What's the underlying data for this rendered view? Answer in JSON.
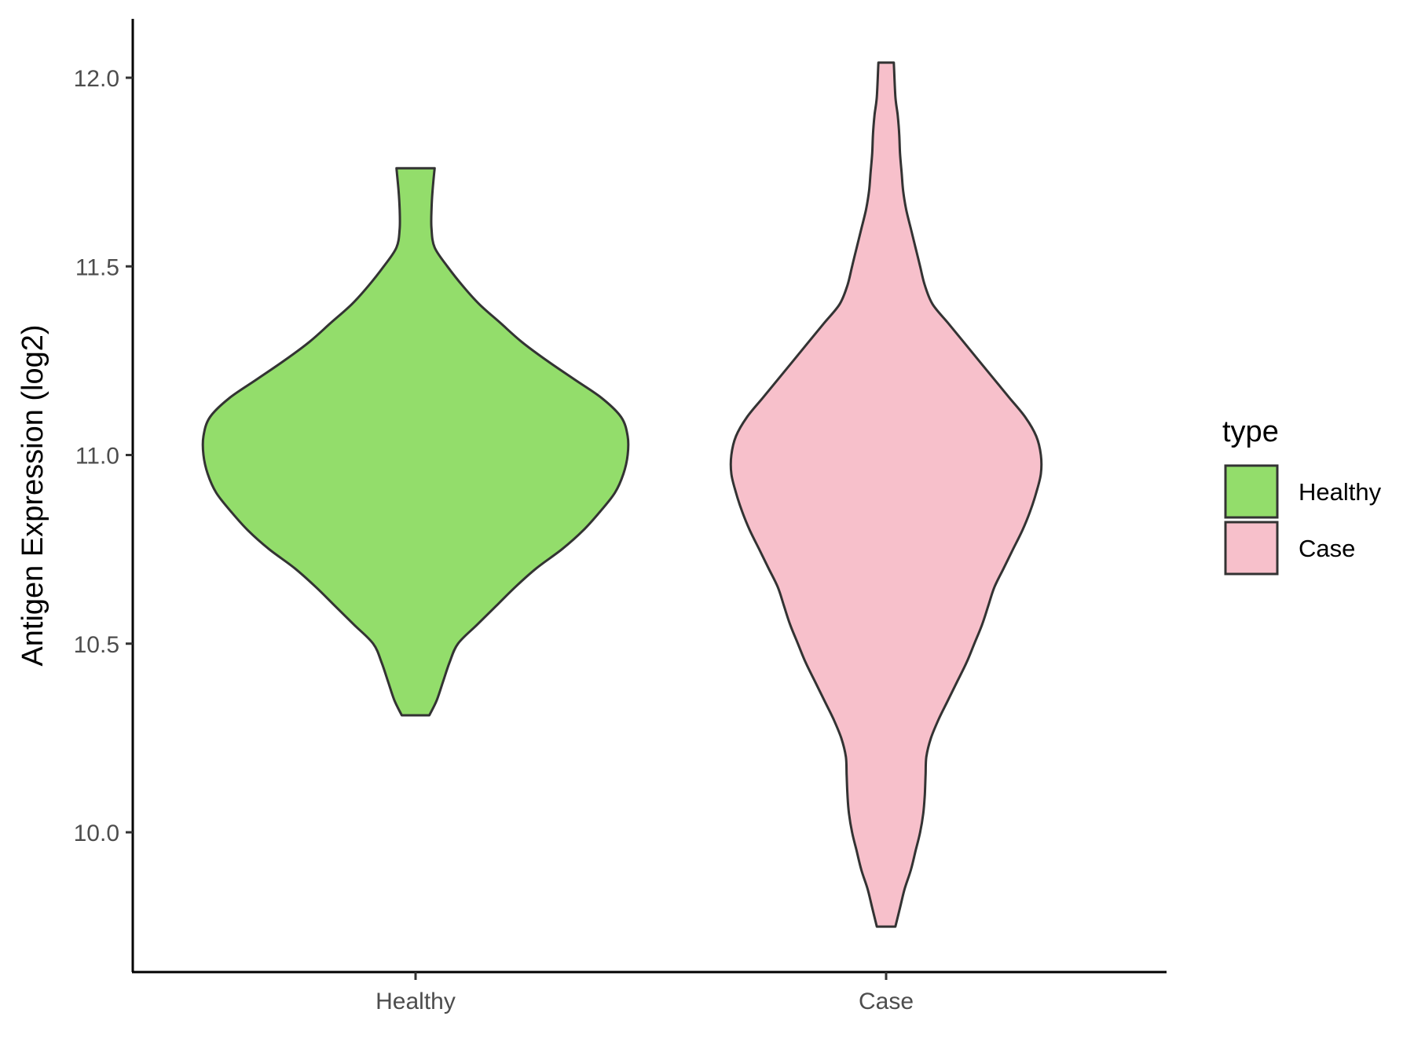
{
  "chart_data": {
    "type": "violin",
    "ylabel": "Antigen Expression (log2)",
    "xlabel": "",
    "categories": [
      "Healthy",
      "Case"
    ],
    "ylim": [
      9.68,
      12.16
    ],
    "yticks": [
      10.0,
      10.5,
      11.0,
      11.5,
      12.0
    ],
    "ytick_labels": [
      "10.0",
      "10.5",
      "11.0",
      "11.5",
      "12.0"
    ],
    "grid": false,
    "legend": {
      "title": "type",
      "placement": "right",
      "entries": [
        {
          "label": "Healthy",
          "color": "#93dd6b"
        },
        {
          "label": "Case",
          "color": "#f7c0cb"
        }
      ]
    },
    "series": [
      {
        "name": "Healthy",
        "color": "#93dd6b",
        "min": 10.31,
        "max": 11.76,
        "profile": [
          [
            10.31,
            0.065
          ],
          [
            10.35,
            0.1
          ],
          [
            10.4,
            0.13
          ],
          [
            10.45,
            0.16
          ],
          [
            10.5,
            0.2
          ],
          [
            10.55,
            0.29
          ],
          [
            10.6,
            0.38
          ],
          [
            10.65,
            0.47
          ],
          [
            10.7,
            0.57
          ],
          [
            10.75,
            0.69
          ],
          [
            10.8,
            0.79
          ],
          [
            10.85,
            0.87
          ],
          [
            10.9,
            0.94
          ],
          [
            10.95,
            0.98
          ],
          [
            11.0,
            1.0
          ],
          [
            11.05,
            1.0
          ],
          [
            11.1,
            0.97
          ],
          [
            11.15,
            0.88
          ],
          [
            11.2,
            0.75
          ],
          [
            11.25,
            0.62
          ],
          [
            11.3,
            0.5
          ],
          [
            11.35,
            0.4
          ],
          [
            11.4,
            0.3
          ],
          [
            11.45,
            0.22
          ],
          [
            11.5,
            0.15
          ],
          [
            11.55,
            0.09
          ],
          [
            11.6,
            0.075
          ],
          [
            11.65,
            0.075
          ],
          [
            11.7,
            0.08
          ],
          [
            11.76,
            0.09
          ]
        ]
      },
      {
        "name": "Case",
        "color": "#f7c0cb",
        "min": 9.75,
        "max": 12.04,
        "profile": [
          [
            9.75,
            0.06
          ],
          [
            9.8,
            0.09
          ],
          [
            9.85,
            0.12
          ],
          [
            9.9,
            0.16
          ],
          [
            9.95,
            0.19
          ],
          [
            10.0,
            0.22
          ],
          [
            10.05,
            0.24
          ],
          [
            10.1,
            0.25
          ],
          [
            10.15,
            0.255
          ],
          [
            10.2,
            0.26
          ],
          [
            10.25,
            0.29
          ],
          [
            10.3,
            0.34
          ],
          [
            10.35,
            0.4
          ],
          [
            10.4,
            0.46
          ],
          [
            10.45,
            0.52
          ],
          [
            10.5,
            0.57
          ],
          [
            10.55,
            0.62
          ],
          [
            10.6,
            0.66
          ],
          [
            10.65,
            0.7
          ],
          [
            10.7,
            0.76
          ],
          [
            10.75,
            0.82
          ],
          [
            10.8,
            0.88
          ],
          [
            10.85,
            0.93
          ],
          [
            10.9,
            0.97
          ],
          [
            10.95,
            1.0
          ],
          [
            11.0,
            1.0
          ],
          [
            11.05,
            0.97
          ],
          [
            11.1,
            0.9
          ],
          [
            11.15,
            0.8
          ],
          [
            11.2,
            0.7
          ],
          [
            11.25,
            0.6
          ],
          [
            11.3,
            0.5
          ],
          [
            11.35,
            0.4
          ],
          [
            11.4,
            0.3
          ],
          [
            11.45,
            0.25
          ],
          [
            11.5,
            0.22
          ],
          [
            11.55,
            0.19
          ],
          [
            11.6,
            0.16
          ],
          [
            11.65,
            0.13
          ],
          [
            11.7,
            0.11
          ],
          [
            11.75,
            0.1
          ],
          [
            11.8,
            0.09
          ],
          [
            11.85,
            0.085
          ],
          [
            11.9,
            0.075
          ],
          [
            11.95,
            0.06
          ],
          [
            12.04,
            0.05
          ]
        ]
      }
    ]
  }
}
